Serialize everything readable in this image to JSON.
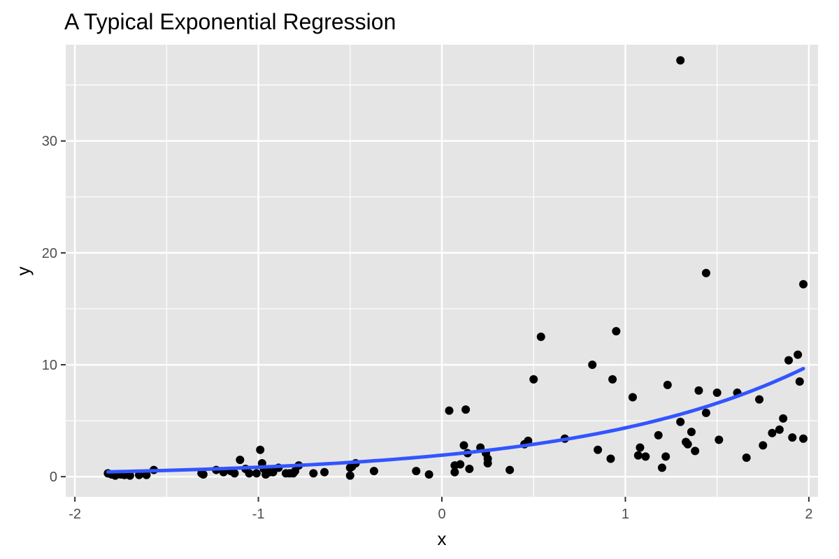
{
  "chart_data": {
    "type": "scatter",
    "title": "A Typical Exponential Regression",
    "xlabel": "x",
    "ylabel": "y",
    "xlim": [
      -2.05,
      2.05
    ],
    "ylim": [
      -1.8,
      38.6
    ],
    "x_ticks": [
      -2,
      -1,
      0,
      1,
      2
    ],
    "x_tick_labels": [
      "-2",
      "-1",
      "0",
      "1",
      "2"
    ],
    "y_ticks": [
      0,
      10,
      20,
      30
    ],
    "y_tick_labels": [
      "0",
      "10",
      "20",
      "30"
    ],
    "grid": true,
    "legend": "none",
    "colors": {
      "panel_background": "#e5e5e5",
      "grid": "#ffffff",
      "points": "#000000",
      "fit_line": "#3355ff"
    },
    "fit": {
      "type": "exponential",
      "a": 1.92,
      "b": 0.82,
      "x_range": [
        -1.82,
        1.97
      ]
    },
    "points": [
      [
        -1.82,
        0.3
      ],
      [
        -1.8,
        0.2
      ],
      [
        -1.78,
        0.1
      ],
      [
        -1.75,
        0.2
      ],
      [
        -1.73,
        0.15
      ],
      [
        -1.7,
        0.1
      ],
      [
        -1.65,
        0.15
      ],
      [
        -1.61,
        0.15
      ],
      [
        -1.57,
        0.6
      ],
      [
        -1.31,
        0.3
      ],
      [
        -1.3,
        0.2
      ],
      [
        -1.23,
        0.6
      ],
      [
        -1.19,
        0.4
      ],
      [
        -1.15,
        0.5
      ],
      [
        -1.13,
        0.3
      ],
      [
        -1.1,
        1.5
      ],
      [
        -1.07,
        0.7
      ],
      [
        -1.05,
        0.3
      ],
      [
        -1.01,
        0.3
      ],
      [
        -0.99,
        2.4
      ],
      [
        -0.98,
        1.2
      ],
      [
        -0.97,
        0.7
      ],
      [
        -0.96,
        0.2
      ],
      [
        -0.94,
        0.4
      ],
      [
        -0.92,
        0.4
      ],
      [
        -0.89,
        0.8
      ],
      [
        -0.85,
        0.3
      ],
      [
        -0.83,
        0.3
      ],
      [
        -0.81,
        0.3
      ],
      [
        -0.8,
        0.5
      ],
      [
        -0.78,
        1.0
      ],
      [
        -0.7,
        0.3
      ],
      [
        -0.64,
        0.4
      ],
      [
        -0.5,
        0.1
      ],
      [
        -0.5,
        0.8
      ],
      [
        -0.49,
        0.9
      ],
      [
        -0.47,
        1.2
      ],
      [
        -0.37,
        0.5
      ],
      [
        -0.14,
        0.5
      ],
      [
        -0.07,
        0.2
      ],
      [
        0.04,
        5.9
      ],
      [
        0.07,
        1.0
      ],
      [
        0.07,
        0.4
      ],
      [
        0.1,
        1.1
      ],
      [
        0.12,
        2.8
      ],
      [
        0.13,
        6.0
      ],
      [
        0.14,
        2.1
      ],
      [
        0.15,
        0.7
      ],
      [
        0.21,
        2.6
      ],
      [
        0.24,
        2.1
      ],
      [
        0.25,
        1.2
      ],
      [
        0.25,
        1.6
      ],
      [
        0.37,
        0.6
      ],
      [
        0.45,
        2.9
      ],
      [
        0.47,
        3.2
      ],
      [
        0.5,
        8.7
      ],
      [
        0.54,
        12.5
      ],
      [
        0.67,
        3.4
      ],
      [
        0.82,
        10.0
      ],
      [
        0.85,
        2.4
      ],
      [
        0.92,
        1.6
      ],
      [
        0.93,
        8.7
      ],
      [
        0.95,
        13.0
      ],
      [
        1.04,
        7.1
      ],
      [
        1.07,
        1.9
      ],
      [
        1.08,
        2.6
      ],
      [
        1.11,
        1.8
      ],
      [
        1.18,
        3.7
      ],
      [
        1.2,
        0.8
      ],
      [
        1.22,
        1.8
      ],
      [
        1.23,
        8.2
      ],
      [
        1.3,
        37.2
      ],
      [
        1.3,
        4.9
      ],
      [
        1.33,
        3.1
      ],
      [
        1.34,
        2.9
      ],
      [
        1.36,
        4.0
      ],
      [
        1.38,
        2.3
      ],
      [
        1.4,
        7.7
      ],
      [
        1.44,
        18.2
      ],
      [
        1.44,
        5.7
      ],
      [
        1.5,
        7.5
      ],
      [
        1.51,
        3.3
      ],
      [
        1.61,
        7.5
      ],
      [
        1.66,
        1.7
      ],
      [
        1.73,
        6.9
      ],
      [
        1.75,
        2.8
      ],
      [
        1.8,
        3.9
      ],
      [
        1.84,
        4.2
      ],
      [
        1.86,
        5.2
      ],
      [
        1.89,
        10.4
      ],
      [
        1.91,
        3.5
      ],
      [
        1.94,
        10.9
      ],
      [
        1.95,
        8.5
      ],
      [
        1.97,
        17.2
      ],
      [
        1.97,
        3.4
      ]
    ]
  }
}
